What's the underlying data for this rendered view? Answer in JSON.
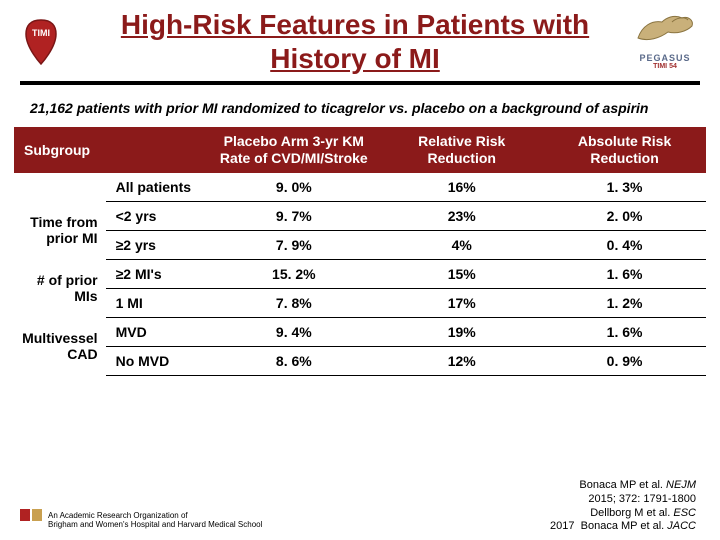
{
  "header": {
    "title": "High-Risk Features in Patients with History of MI",
    "logo_left_name": "timi-logo",
    "logo_right_name": "pegasus-logo",
    "logo_right_label": "PEGASUS",
    "logo_right_sublabel": "TIMI 54"
  },
  "subtitle": "21,162 patients with prior MI randomized to ticagrelor vs. placebo on a background of aspirin",
  "table": {
    "columns": [
      "Subgroup",
      "Placebo Arm 3-yr KM Rate of CVD/MI/Stroke",
      "Relative Risk Reduction",
      "Absolute Risk Reduction"
    ],
    "groups": [
      {
        "label": "",
        "rows": [
          {
            "sub": "All patients",
            "c1": "9. 0%",
            "c2": "16%",
            "c3": "1. 3%"
          }
        ]
      },
      {
        "label": "Time from prior MI",
        "rows": [
          {
            "sub": "<2 yrs",
            "c1": "9. 7%",
            "c2": "23%",
            "c3": "2. 0%"
          },
          {
            "sub": "≥2 yrs",
            "c1": "7. 9%",
            "c2": "4%",
            "c3": "0. 4%"
          }
        ]
      },
      {
        "label": "# of prior MIs",
        "rows": [
          {
            "sub": "≥2 MI's",
            "c1": "15. 2%",
            "c2": "15%",
            "c3": "1. 6%"
          },
          {
            "sub": "1 MI",
            "c1": "7. 8%",
            "c2": "17%",
            "c3": "1. 2%"
          }
        ]
      },
      {
        "label": "Multivessel CAD",
        "rows": [
          {
            "sub": "MVD",
            "c1": "9. 4%",
            "c2": "19%",
            "c3": "1. 6%"
          },
          {
            "sub": "No MVD",
            "c1": "8. 6%",
            "c2": "12%",
            "c3": "0. 9%"
          }
        ]
      }
    ]
  },
  "references": [
    "Bonaca MP et al. NEJM",
    "2015; 372: 1791-1800",
    "Dellborg M et al. ESC",
    "2017  Bonaca MP et al. JACC"
  ],
  "affiliation": {
    "line1": "An Academic Research Organization of",
    "line2": "Brigham and Women's Hospital and Harvard Medical School"
  },
  "colors": {
    "header_bg": "#8b1a1a",
    "title_color": "#8b1a1a"
  }
}
